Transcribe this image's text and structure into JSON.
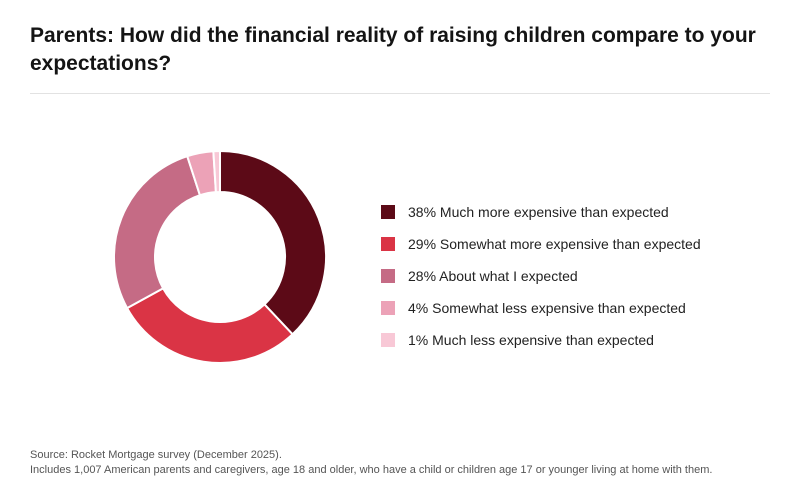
{
  "title": "Parents: How did the financial reality of raising children compare to your expectations?",
  "chart_data": {
    "type": "pie",
    "donut": true,
    "categories": [
      "Much more expensive than expected",
      "Somewhat more expensive than expected",
      "About what I expected",
      "Somewhat less expensive than expected",
      "Much less expensive than expected"
    ],
    "values": [
      38,
      29,
      28,
      4,
      1
    ],
    "legend_labels": [
      "38% Much more expensive than expected",
      "29% Somewhat more expensive than expected",
      "28% About what I expected",
      "4% Somewhat less expensive than expected",
      "1% Much less expensive than expected"
    ],
    "colors": [
      "#5c0a17",
      "#da3445",
      "#c56b85",
      "#eca2b7",
      "#f8c8d6"
    ],
    "legend_position": "right"
  },
  "footer": {
    "source": "Source: Rocket Mortgage survey (December 2025).",
    "note": "Includes 1,007 American parents and caregivers, age 18 and older, who have a child or children age 17 or younger living at home with them."
  }
}
